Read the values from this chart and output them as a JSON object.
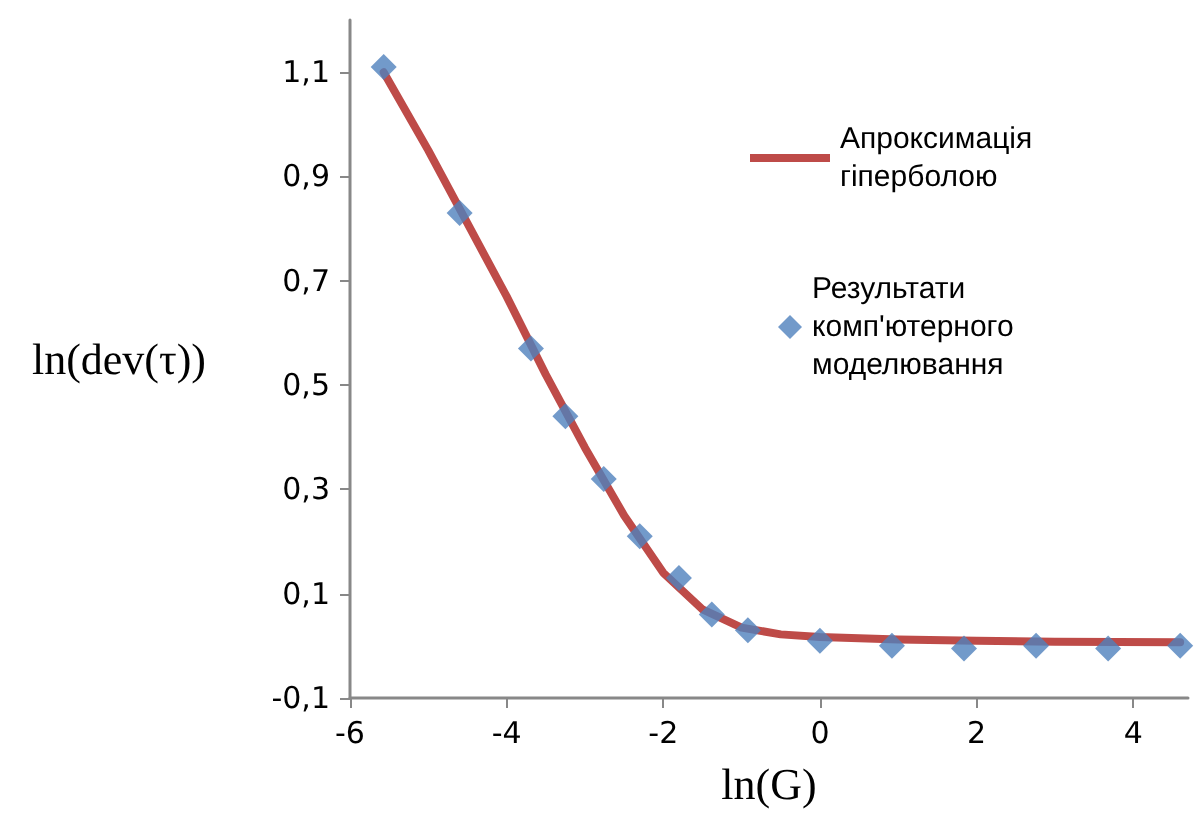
{
  "chart_data": {
    "type": "scatter",
    "xlabel": "ln(G)",
    "ylabel": "ln(dev(τ))",
    "xlim": [
      -6,
      4.7
    ],
    "xticks": [
      -6,
      -4,
      -2,
      0,
      2,
      4
    ],
    "ylim": [
      -0.1,
      1.2
    ],
    "yticks": [
      {
        "value": -0.1,
        "label": "-0,1"
      },
      {
        "value": 0.1,
        "label": "0,1"
      },
      {
        "value": 0.3,
        "label": "0,3"
      },
      {
        "value": 0.5,
        "label": "0,5"
      },
      {
        "value": 0.7,
        "label": "0,7"
      },
      {
        "value": 0.9,
        "label": "0,9"
      },
      {
        "value": 1.1,
        "label": "1,1"
      }
    ],
    "grid": false,
    "legend": "top right",
    "series": [
      {
        "name": "Апроксимація гіперболою",
        "type": "line",
        "color": "#be4b48",
        "marker": "none",
        "line_style": "solid",
        "x": [
          -5.57,
          -5,
          -4.5,
          -4,
          -3.5,
          -3,
          -2.5,
          -2,
          -1.5,
          -1,
          -0.5,
          0,
          1,
          2,
          3,
          4.6
        ],
        "values": [
          1.1,
          0.95,
          0.81,
          0.67,
          0.52,
          0.38,
          0.25,
          0.14,
          0.07,
          0.035,
          0.022,
          0.017,
          0.012,
          0.01,
          0.008,
          0.007
        ]
      },
      {
        "name": "Результати комп'ютерного моделювання",
        "color": "#4f81bd",
        "marker": "diamond",
        "x": [
          -5.57,
          -4.6,
          -3.69,
          -3.25,
          -2.76,
          -2.3,
          -1.8,
          -1.38,
          -0.92,
          0,
          0.92,
          1.84,
          2.76,
          3.68,
          4.6
        ],
        "values": [
          1.11,
          0.83,
          0.57,
          0.44,
          0.32,
          0.21,
          0.13,
          0.06,
          0.03,
          0.01,
          0.0,
          -0.005,
          0.0,
          -0.005,
          0.0
        ]
      }
    ]
  }
}
